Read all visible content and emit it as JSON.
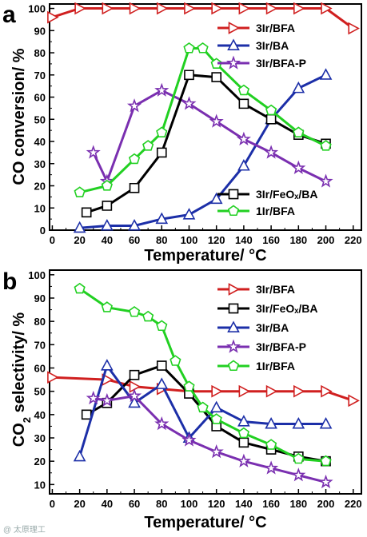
{
  "watermark": "@ 太原理工",
  "chart_data": [
    {
      "type": "line",
      "panel_label": "a",
      "xlabel": "Temperature/ °C",
      "ylabel": "CO conversion/ %",
      "xlim": [
        -2,
        226
      ],
      "ylim": [
        0,
        102
      ],
      "x_ticks": [
        0,
        20,
        40,
        60,
        80,
        100,
        120,
        140,
        160,
        180,
        200,
        220
      ],
      "y_ticks": [
        0,
        10,
        20,
        30,
        40,
        50,
        60,
        70,
        80,
        90,
        100
      ],
      "legend_placement": "top-right and bottom-right",
      "series": [
        {
          "name": "3Ir/BFA",
          "color": "#d01f1f",
          "marker": "triangle-right",
          "x": [
            0,
            20,
            40,
            60,
            80,
            100,
            120,
            140,
            160,
            180,
            200,
            220
          ],
          "y": [
            96,
            100,
            100,
            100,
            100,
            100,
            100,
            100,
            100,
            100,
            100,
            91
          ]
        },
        {
          "name": "3Ir/BA",
          "color": "#1c2fa8",
          "marker": "triangle-up",
          "x": [
            20,
            40,
            60,
            80,
            100,
            120,
            140,
            160,
            180,
            200
          ],
          "y": [
            1,
            2,
            2,
            5,
            7,
            14,
            29,
            50,
            64,
            70
          ]
        },
        {
          "name": "3Ir/BFA-P",
          "color": "#7a2fb0",
          "marker": "star",
          "x": [
            30,
            40,
            60,
            80,
            100,
            120,
            140,
            160,
            180,
            200
          ],
          "y": [
            35,
            22,
            56,
            63,
            57,
            49,
            41,
            35,
            28,
            22
          ]
        },
        {
          "name": "3Ir/FeOₓ/BA",
          "color": "#000000",
          "marker": "square",
          "x": [
            25,
            40,
            60,
            80,
            100,
            120,
            140,
            160,
            180,
            200
          ],
          "y": [
            8,
            11,
            19,
            35,
            70,
            69,
            57,
            50,
            43,
            39
          ]
        },
        {
          "name": "1Ir/BFA",
          "color": "#22d022",
          "marker": "pentagon",
          "x": [
            20,
            40,
            60,
            70,
            80,
            100,
            110,
            120,
            140,
            160,
            180,
            200
          ],
          "y": [
            17,
            20,
            32,
            38,
            44,
            82,
            82,
            75,
            63,
            54,
            44,
            38
          ]
        }
      ],
      "legend_groups": [
        {
          "entries": [
            "3Ir/BFA",
            "3Ir/BA",
            "3Ir/BFA-P"
          ]
        },
        {
          "entries": [
            "3Ir/FeOₓ/BA",
            "1Ir/BFA"
          ]
        }
      ]
    },
    {
      "type": "line",
      "panel_label": "b",
      "xlabel": "Temperature/ °C",
      "ylabel_prefix": "CO",
      "ylabel_subscript": "2",
      "ylabel_suffix": " selectivity/ %",
      "xlim": [
        -2,
        226
      ],
      "ylim": [
        6,
        102
      ],
      "x_ticks": [
        0,
        20,
        40,
        60,
        80,
        100,
        120,
        140,
        160,
        180,
        200,
        220
      ],
      "y_ticks": [
        10,
        20,
        30,
        40,
        50,
        60,
        70,
        80,
        90,
        100
      ],
      "legend_placement": "top-right",
      "series": [
        {
          "name": "3Ir/BFA",
          "color": "#d01f1f",
          "marker": "triangle-right",
          "x": [
            0,
            40,
            60,
            80,
            100,
            120,
            140,
            160,
            180,
            200,
            220
          ],
          "y": [
            56,
            55,
            52,
            51,
            50,
            50,
            50,
            50,
            50,
            50,
            46
          ]
        },
        {
          "name": "3Ir/FeOₓ/BA",
          "color": "#000000",
          "marker": "square",
          "x": [
            25,
            40,
            60,
            80,
            100,
            120,
            140,
            160,
            180,
            200
          ],
          "y": [
            40,
            45,
            57,
            61,
            49,
            35,
            28,
            25,
            22,
            20
          ]
        },
        {
          "name": "3Ir/BA",
          "color": "#1c2fa8",
          "marker": "triangle-up",
          "x": [
            20,
            40,
            60,
            80,
            100,
            120,
            140,
            160,
            180,
            200
          ],
          "y": [
            22,
            61,
            45,
            53,
            30,
            43,
            37,
            36,
            36,
            36
          ]
        },
        {
          "name": "3Ir/BFA-P",
          "color": "#7a2fb0",
          "marker": "star",
          "x": [
            30,
            40,
            60,
            80,
            100,
            120,
            140,
            160,
            180,
            200
          ],
          "y": [
            47,
            46,
            48,
            36,
            29,
            24,
            20,
            17,
            14,
            11
          ]
        },
        {
          "name": "1Ir/BFA",
          "color": "#22d022",
          "marker": "pentagon",
          "x": [
            20,
            40,
            60,
            70,
            80,
            90,
            100,
            110,
            120,
            140,
            160,
            180,
            200
          ],
          "y": [
            94,
            86,
            84,
            82,
            78,
            63,
            52,
            43,
            38,
            32,
            27,
            21,
            20
          ]
        }
      ],
      "legend_groups": [
        {
          "entries": [
            "3Ir/BFA",
            "3Ir/FeOₓ/BA",
            "3Ir/BA",
            "3Ir/BFA-P",
            "1Ir/BFA"
          ]
        }
      ]
    }
  ]
}
